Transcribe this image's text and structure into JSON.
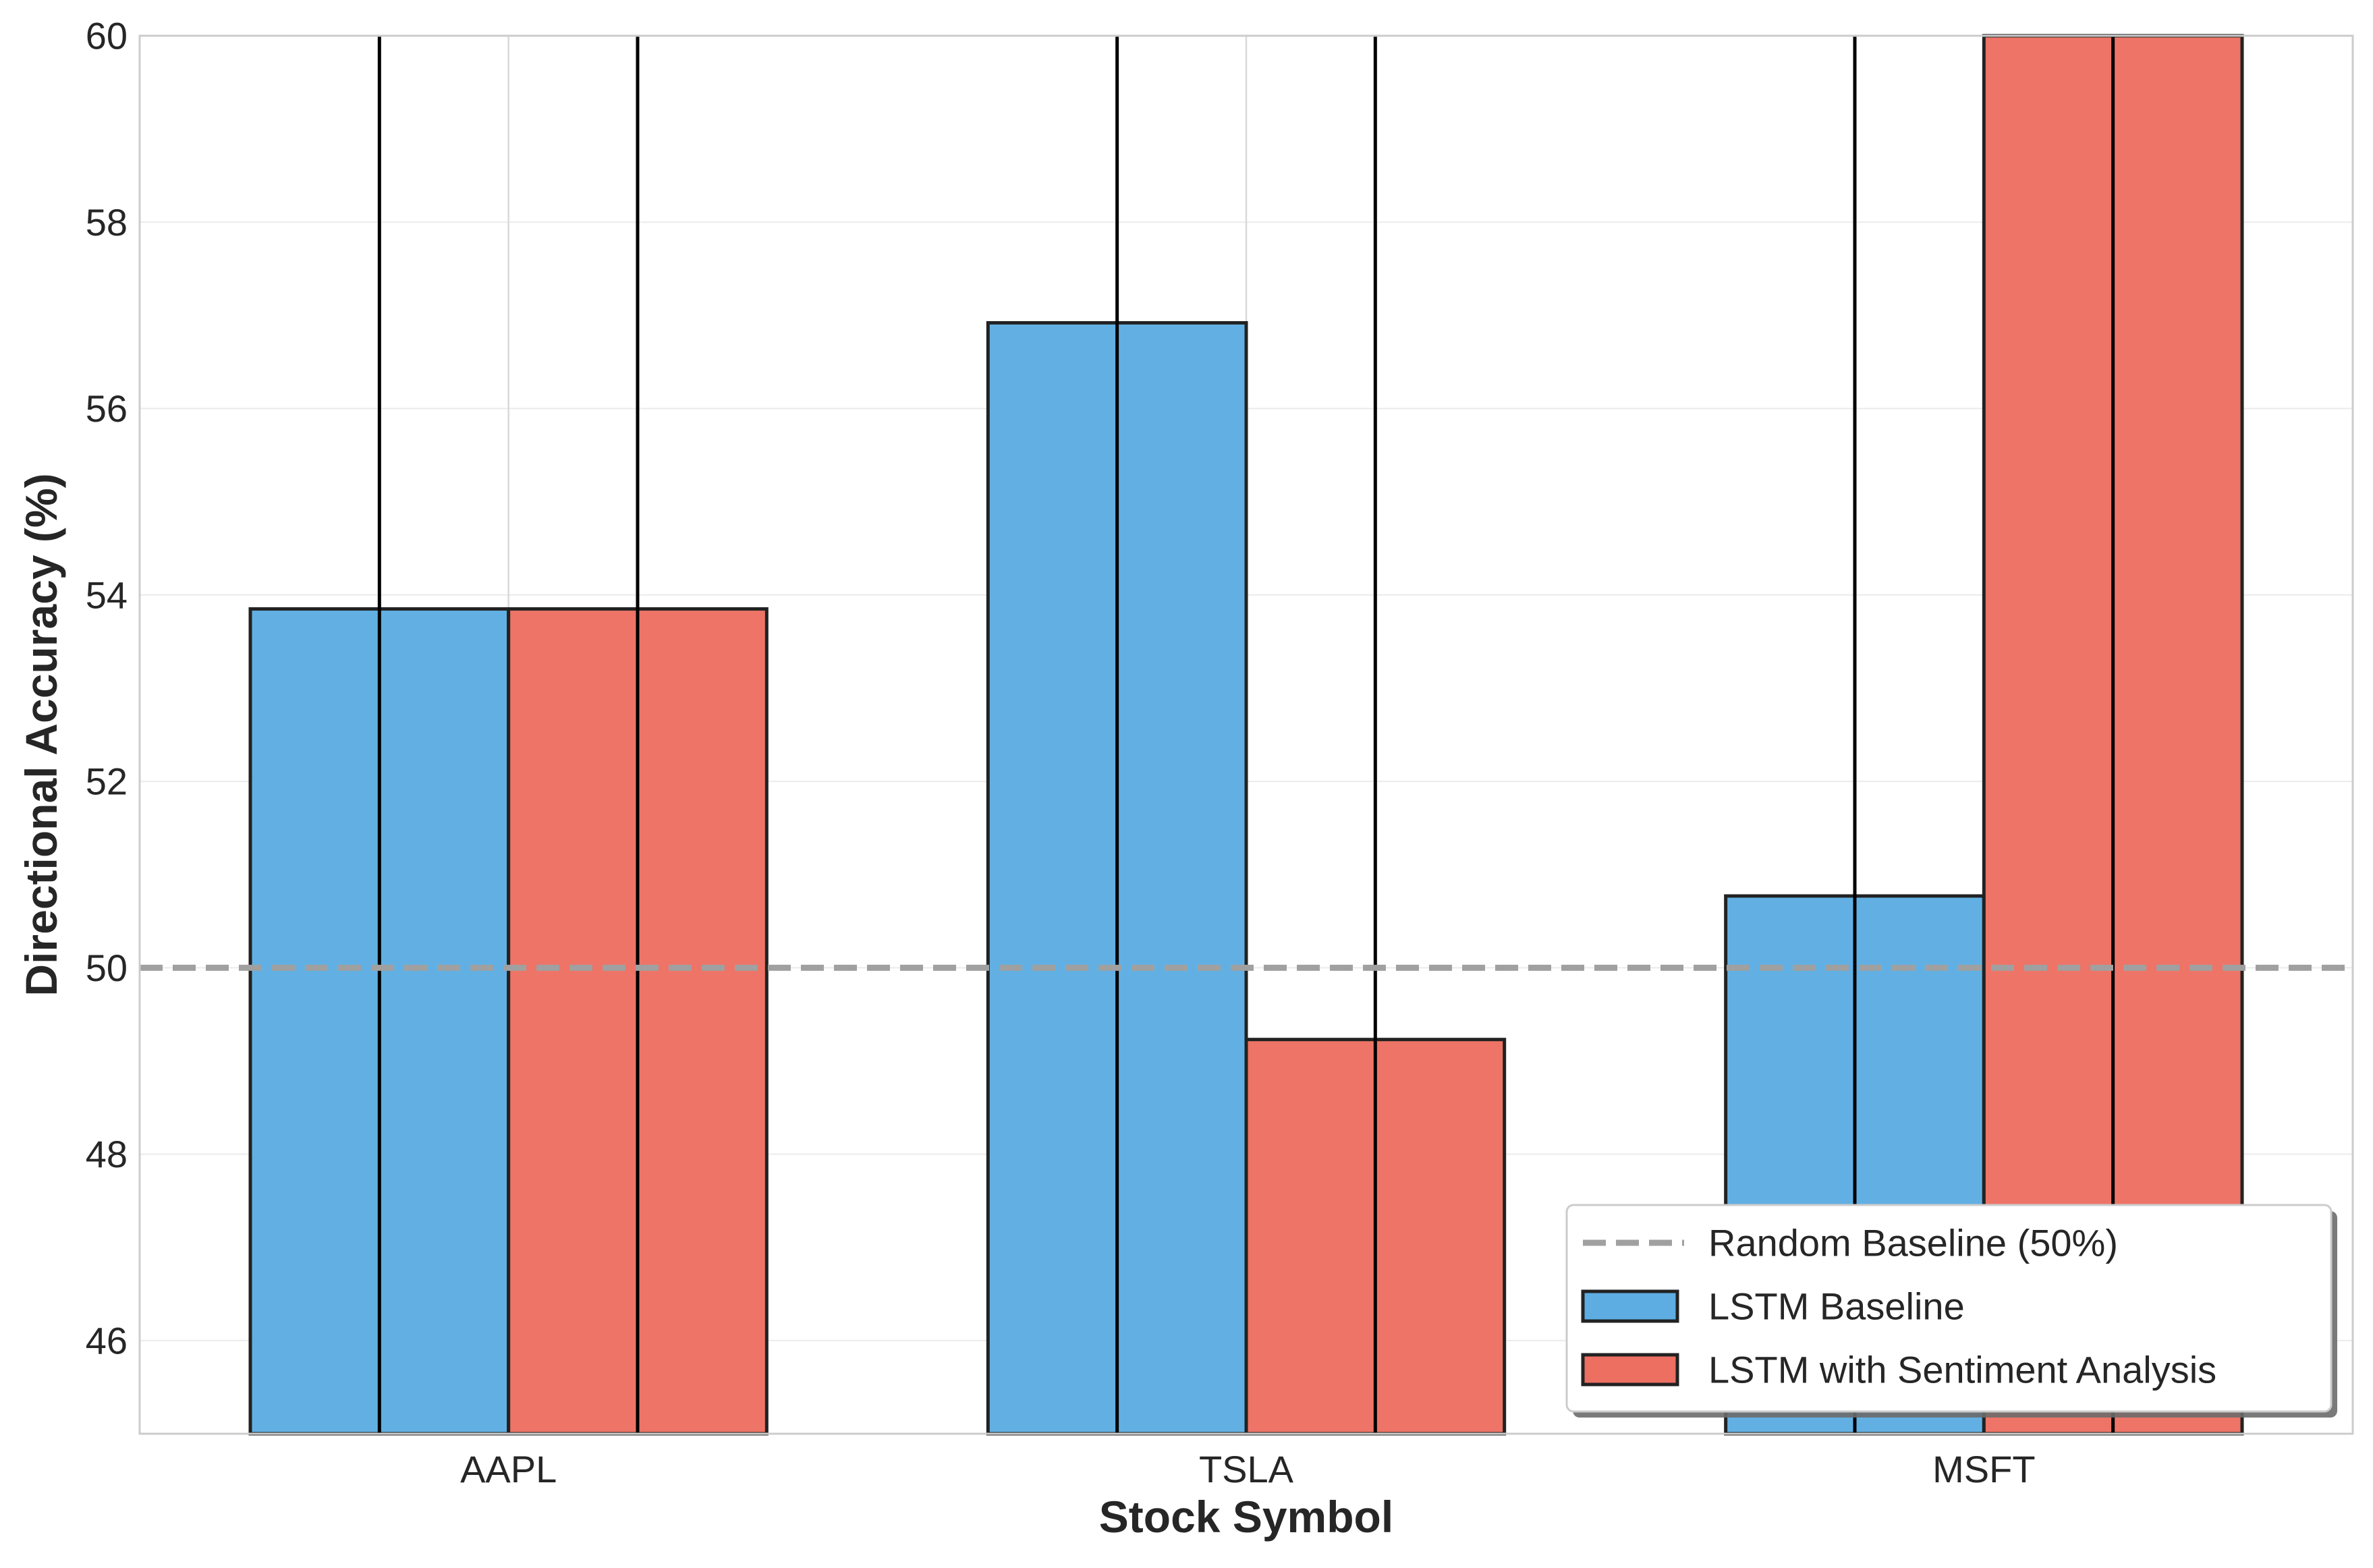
{
  "chart_data": {
    "type": "bar",
    "title": "",
    "xlabel": "Stock Symbol",
    "ylabel": "Directional Accuracy (%)",
    "categories": [
      "AAPL",
      "TSLA",
      "MSFT"
    ],
    "series": [
      {
        "name": "LSTM Baseline",
        "values": [
          53.85,
          56.92,
          50.77
        ],
        "color": "#5DADE2"
      },
      {
        "name": "LSTM with Sentiment Analysis",
        "values": [
          53.85,
          49.23,
          60.0
        ],
        "color": "#EC6F62"
      }
    ],
    "error_bars": "extend beyond plot range",
    "ylim": [
      45,
      60
    ],
    "yticks": [
      46,
      48,
      50,
      52,
      54,
      56,
      58,
      60
    ],
    "reference_line": {
      "label": "Random Baseline (50%)",
      "value": 50,
      "color": "#A0A0A0",
      "style": "dashed"
    },
    "grid": true,
    "legend_position": "lower-right"
  }
}
